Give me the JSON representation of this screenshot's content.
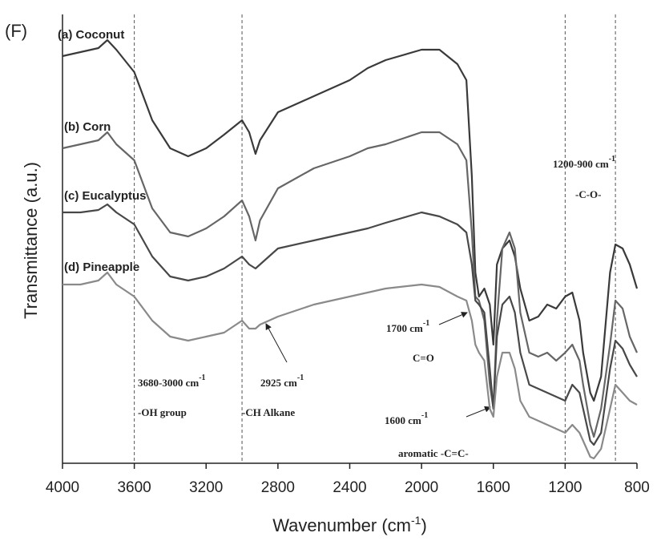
{
  "panel_label": "(F)",
  "chart_data": {
    "type": "line",
    "x_label": [
      "Wavenumber (cm",
      "-1",
      ")"
    ],
    "y_label": "Transmittance (a.u.)",
    "xlim": [
      4000,
      800
    ],
    "xticks": [
      4000,
      3600,
      3200,
      2800,
      2400,
      2000,
      1600,
      1200,
      800
    ],
    "ylim": [
      0,
      560
    ],
    "reference_lines": [
      3600,
      3000,
      1200,
      920
    ],
    "x": [
      4000,
      3900,
      3800,
      3750,
      3700,
      3600,
      3500,
      3400,
      3300,
      3200,
      3100,
      3000,
      2960,
      2925,
      2900,
      2800,
      2600,
      2400,
      2300,
      2200,
      2000,
      1900,
      1800,
      1750,
      1720,
      1700,
      1680,
      1650,
      1620,
      1600,
      1580,
      1550,
      1510,
      1480,
      1450,
      1400,
      1350,
      1300,
      1250,
      1200,
      1160,
      1120,
      1100,
      1060,
      1040,
      1000,
      950,
      920,
      880,
      840,
      800
    ],
    "series": [
      {
        "name": "(a) Coconut",
        "color": "#3a3a3a",
        "values": [
          508,
          513,
          518,
          528,
          516,
          488,
          428,
          393,
          383,
          393,
          410,
          428,
          413,
          386,
          403,
          438,
          458,
          478,
          493,
          503,
          516,
          516,
          498,
          478,
          358,
          238,
          208,
          218,
          198,
          148,
          248,
          268,
          278,
          258,
          218,
          178,
          183,
          198,
          193,
          208,
          213,
          178,
          138,
          88,
          78,
          108,
          238,
          273,
          268,
          248,
          218
        ]
      },
      {
        "name": "(b) Corn",
        "color": "#666666",
        "values": [
          393,
          398,
          403,
          413,
          398,
          378,
          318,
          288,
          283,
          293,
          308,
          328,
          308,
          278,
          303,
          343,
          368,
          383,
          393,
          398,
          413,
          413,
          398,
          378,
          288,
          208,
          203,
          178,
          98,
          68,
          178,
          268,
          288,
          268,
          188,
          138,
          133,
          138,
          128,
          138,
          148,
          128,
          98,
          48,
          33,
          68,
          148,
          203,
          193,
          158,
          138
        ]
      },
      {
        "name": "(c) Eucalyptus",
        "color": "#484848",
        "values": [
          313,
          313,
          316,
          323,
          313,
          298,
          258,
          233,
          228,
          233,
          243,
          258,
          248,
          243,
          248,
          268,
          278,
          288,
          293,
          300,
          313,
          308,
          298,
          288,
          248,
          203,
          198,
          188,
          118,
          68,
          158,
          198,
          208,
          188,
          138,
          98,
          93,
          88,
          83,
          78,
          98,
          88,
          68,
          28,
          23,
          38,
          118,
          153,
          143,
          123,
          108
        ]
      },
      {
        "name": "(d) Pineapple",
        "color": "#8a8a8a",
        "values": [
          223,
          223,
          228,
          238,
          223,
          208,
          178,
          158,
          153,
          158,
          163,
          178,
          168,
          168,
          173,
          183,
          198,
          208,
          213,
          218,
          223,
          220,
          208,
          203,
          178,
          148,
          138,
          128,
          68,
          58,
          108,
          138,
          138,
          118,
          78,
          58,
          53,
          48,
          43,
          38,
          48,
          38,
          28,
          8,
          6,
          18,
          68,
          98,
          88,
          78,
          73
        ]
      }
    ],
    "annotations": [
      {
        "text": "3680-3000 cm",
        "sup": "-1"
      },
      {
        "text": "-OH group"
      },
      {
        "text": "2925 cm",
        "sup": "-1"
      },
      {
        "text": "-CH Alkane"
      },
      {
        "text": "1700 cm",
        "sup": "-1"
      },
      {
        "text": "C=O"
      },
      {
        "text": "1600 cm",
        "sup": "-1"
      },
      {
        "text": "aromatic -C=C-"
      },
      {
        "text": "1200-900 cm",
        "sup": "-1"
      },
      {
        "text": "-C-O-"
      }
    ]
  }
}
